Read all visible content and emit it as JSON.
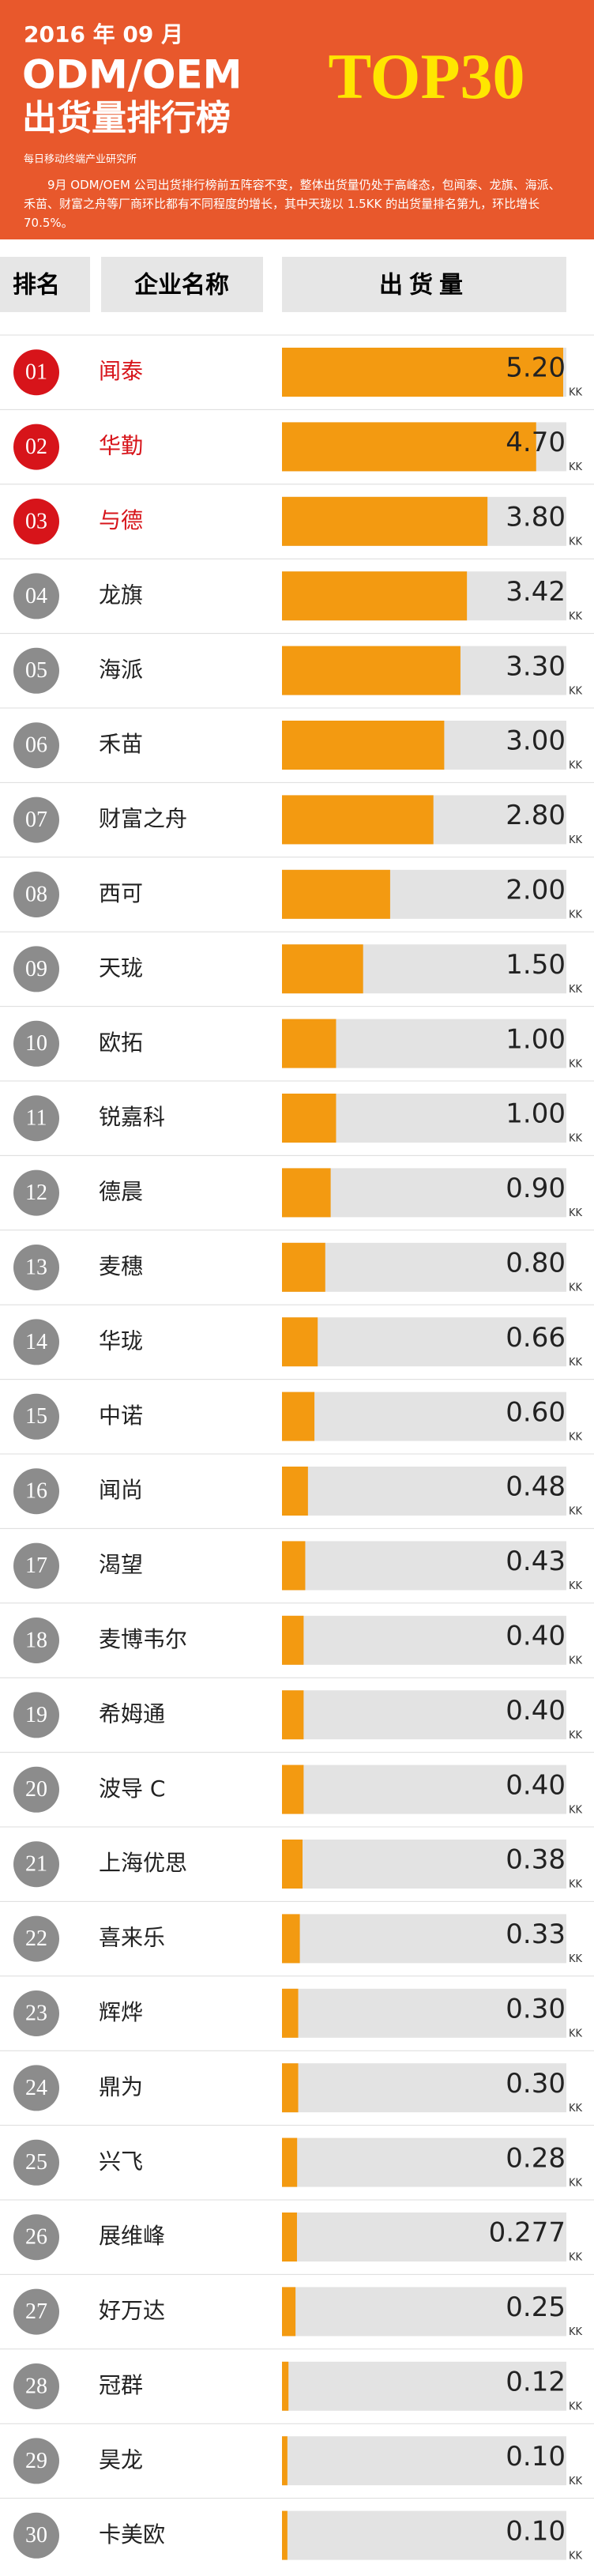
{
  "header": {
    "date": "2016 年 09 月",
    "title_line1": "ODM/OEM",
    "title_line2": "出货量排行榜",
    "badge": "TOP30",
    "source": "每日移动终端产业研究所",
    "description": "9月 ODM/OEM 公司出货排行榜前五阵容不变，整体出货量仍处于高峰态，包闻泰、龙旗、海派、禾苗、财富之舟等厂商环比都有不同程度的增长，其中天珑以 1.5KK 的出货量排名第九，环比增长 70.5%。"
  },
  "chart_data": {
    "type": "bar",
    "column_headers": [
      "排名",
      "企业名称",
      "出货量"
    ],
    "ranks": [
      "01",
      "02",
      "03",
      "04",
      "05",
      "06",
      "07",
      "08",
      "09",
      "10",
      "11",
      "12",
      "13",
      "14",
      "15",
      "16",
      "17",
      "18",
      "19",
      "20",
      "21",
      "22",
      "23",
      "24",
      "25",
      "26",
      "27",
      "28",
      "29",
      "30"
    ],
    "categories": [
      "闻泰",
      "华勤",
      "与德",
      "龙旗",
      "海派",
      "禾苗",
      "财富之舟",
      "西可",
      "天珑",
      "欧拓",
      "锐嘉科",
      "德晨",
      "麦穗",
      "华珑",
      "中诺",
      "闻尚",
      "渴望",
      "麦博韦尔",
      "希姆通",
      "波导 C",
      "上海优思",
      "喜来乐",
      "辉烨",
      "鼎为",
      "兴飞",
      "展维峰",
      "好万达",
      "冠群",
      "昊龙",
      "卡美欧"
    ],
    "values": [
      5.2,
      4.7,
      3.8,
      3.42,
      3.3,
      3,
      2.8,
      2,
      1.5,
      1,
      1,
      0.9,
      0.8,
      0.66,
      0.6,
      0.48,
      0.43,
      0.4,
      0.4,
      0.4,
      0.38,
      0.33,
      0.3,
      0.3,
      0.28,
      0.277,
      0.25,
      0.12,
      0.1,
      0.1
    ],
    "value_labels": [
      "5.20",
      "4.70",
      "3.80",
      "3.42",
      "3.30",
      "3.00",
      "2.80",
      "2.00",
      "1.50",
      "1.00",
      "1.00",
      "0.90",
      "0.80",
      "0.66",
      "0.60",
      "0.48",
      "0.43",
      "0.40",
      "0.40",
      "0.40",
      "0.38",
      "0.33",
      "0.30",
      "0.30",
      "0.28",
      "0.277",
      "0.25",
      "0.12",
      "0.10",
      "0.10"
    ],
    "unit": "KK",
    "color": "#f39a11",
    "track_color": "#e3e3e3",
    "label_colors": [
      "#d7141a",
      "#d7141a",
      "#d7141a",
      "#8c8c8c",
      "#8c8c8c",
      "#8c8c8c",
      "#8c8c8c",
      "#8c8c8c",
      "#8c8c8c",
      "#8c8c8c",
      "#8c8c8c",
      "#8c8c8c",
      "#8c8c8c",
      "#8c8c8c",
      "#8c8c8c",
      "#8c8c8c",
      "#8c8c8c",
      "#8c8c8c",
      "#8c8c8c",
      "#8c8c8c",
      "#8c8c8c",
      "#8c8c8c",
      "#8c8c8c",
      "#8c8c8c",
      "#8c8c8c",
      "#8c8c8c",
      "#8c8c8c",
      "#8c8c8c",
      "#8c8c8c",
      "#8c8c8c"
    ]
  }
}
